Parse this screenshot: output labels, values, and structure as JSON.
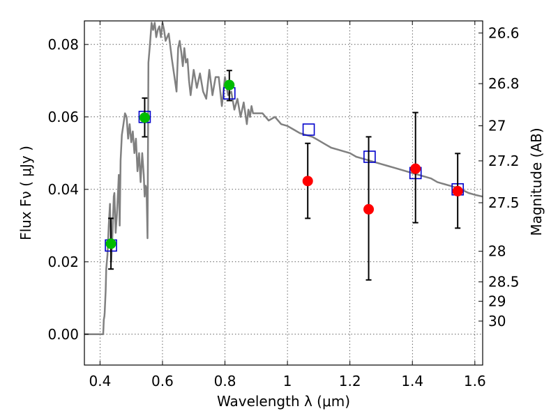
{
  "chart_data": {
    "type": "scatter",
    "xlabel": "Wavelength  λ (μm)",
    "ylabel": "Flux  Fν  ( μJy )",
    "y2label": "Magnitude (AB)",
    "xlim": [
      0.35,
      1.625
    ],
    "ylim": [
      -0.0085,
      0.0865
    ],
    "x_ticks": [
      "0.4",
      "0.6",
      "0.8",
      "1",
      "1.2",
      "1.4",
      "1.6"
    ],
    "x_tick_values": [
      0.4,
      0.6,
      0.8,
      1.0,
      1.2,
      1.4,
      1.6
    ],
    "y_ticks": [
      "0.00",
      "0.02",
      "0.04",
      "0.06",
      "0.08"
    ],
    "y_tick_values": [
      0.0,
      0.02,
      0.04,
      0.06,
      0.08
    ],
    "y2_ticks": [
      "26.6",
      "26.8",
      "27",
      "27.2",
      "27.5",
      "28",
      "28.5",
      "29",
      "30"
    ],
    "y2_tick_values": [
      26.6,
      26.8,
      27.0,
      27.2,
      27.5,
      28.0,
      28.5,
      29.0,
      30.0
    ],
    "grid": true,
    "colors": {
      "model": "#808080",
      "green": "#00bb00",
      "red": "#ff0000",
      "box": "#0000cc",
      "errorbar": "#000000"
    },
    "model_spectrum": {
      "x": [
        0.35,
        0.41,
        0.411,
        0.412,
        0.414,
        0.415,
        0.418,
        0.42,
        0.424,
        0.428,
        0.432,
        0.436,
        0.44,
        0.444,
        0.446,
        0.45,
        0.454,
        0.458,
        0.46,
        0.463,
        0.466,
        0.47,
        0.475,
        0.48,
        0.485,
        0.49,
        0.495,
        0.5,
        0.505,
        0.51,
        0.515,
        0.52,
        0.525,
        0.53,
        0.535,
        0.54,
        0.543,
        0.546,
        0.549,
        0.552,
        0.555,
        0.56,
        0.565,
        0.57,
        0.575,
        0.58,
        0.585,
        0.59,
        0.595,
        0.6,
        0.605,
        0.61,
        0.62,
        0.63,
        0.64,
        0.645,
        0.65,
        0.655,
        0.66,
        0.665,
        0.67,
        0.675,
        0.68,
        0.685,
        0.69,
        0.7,
        0.71,
        0.72,
        0.73,
        0.74,
        0.75,
        0.76,
        0.77,
        0.78,
        0.79,
        0.8,
        0.81,
        0.82,
        0.83,
        0.84,
        0.85,
        0.86,
        0.87,
        0.875,
        0.88,
        0.885,
        0.89,
        0.9,
        0.92,
        0.94,
        0.96,
        0.98,
        1.0,
        1.02,
        1.04,
        1.06,
        1.08,
        1.1,
        1.12,
        1.14,
        1.16,
        1.18,
        1.2,
        1.22,
        1.24,
        1.26,
        1.28,
        1.3,
        1.32,
        1.34,
        1.36,
        1.38,
        1.4,
        1.42,
        1.44,
        1.46,
        1.48,
        1.5,
        1.52,
        1.54,
        1.56,
        1.58,
        1.6,
        1.625
      ],
      "y": [
        0.0,
        0.0,
        0.0015,
        0.004,
        0.005,
        0.006,
        0.012,
        0.018,
        0.022,
        0.03,
        0.036,
        0.02,
        0.028,
        0.038,
        0.039,
        0.028,
        0.033,
        0.04,
        0.044,
        0.03,
        0.048,
        0.055,
        0.058,
        0.061,
        0.06,
        0.054,
        0.058,
        0.053,
        0.056,
        0.05,
        0.054,
        0.045,
        0.05,
        0.042,
        0.05,
        0.044,
        0.038,
        0.041,
        0.04,
        0.0265,
        0.075,
        0.08,
        0.086,
        0.084,
        0.086,
        0.082,
        0.084,
        0.085,
        0.082,
        0.086,
        0.084,
        0.081,
        0.083,
        0.076,
        0.07,
        0.067,
        0.079,
        0.081,
        0.078,
        0.074,
        0.079,
        0.075,
        0.076,
        0.07,
        0.066,
        0.073,
        0.068,
        0.072,
        0.067,
        0.065,
        0.073,
        0.066,
        0.071,
        0.071,
        0.063,
        0.071,
        0.066,
        0.067,
        0.062,
        0.065,
        0.06,
        0.064,
        0.058,
        0.062,
        0.06,
        0.063,
        0.061,
        0.061,
        0.061,
        0.059,
        0.06,
        0.058,
        0.0575,
        0.0565,
        0.0555,
        0.055,
        0.0545,
        0.0535,
        0.0525,
        0.0515,
        0.051,
        0.0505,
        0.05,
        0.049,
        0.0485,
        0.048,
        0.0475,
        0.047,
        0.0465,
        0.046,
        0.0455,
        0.045,
        0.0445,
        0.044,
        0.0435,
        0.043,
        0.042,
        0.0415,
        0.041,
        0.0405,
        0.0398,
        0.039,
        0.0385,
        0.038
      ]
    },
    "green_points": {
      "x": [
        0.435,
        0.543,
        0.814
      ],
      "y": [
        0.025,
        0.0598,
        0.0688
      ],
      "yerr_low": [
        0.018,
        0.0545,
        0.0645
      ],
      "yerr_high": [
        0.032,
        0.0652,
        0.0728
      ]
    },
    "red_points": {
      "x": [
        1.065,
        1.26,
        1.41,
        1.545
      ],
      "y": [
        0.0423,
        0.0345,
        0.0457,
        0.0395
      ],
      "yerr_low": [
        0.032,
        0.015,
        0.0308,
        0.0293
      ],
      "yerr_high": [
        0.0527,
        0.0545,
        0.0612,
        0.0499
      ]
    },
    "model_boxes": {
      "x": [
        0.435,
        0.543,
        0.814,
        1.068,
        1.263,
        1.41,
        1.545
      ],
      "y": [
        0.0245,
        0.06,
        0.0665,
        0.0565,
        0.049,
        0.0445,
        0.04
      ]
    }
  }
}
